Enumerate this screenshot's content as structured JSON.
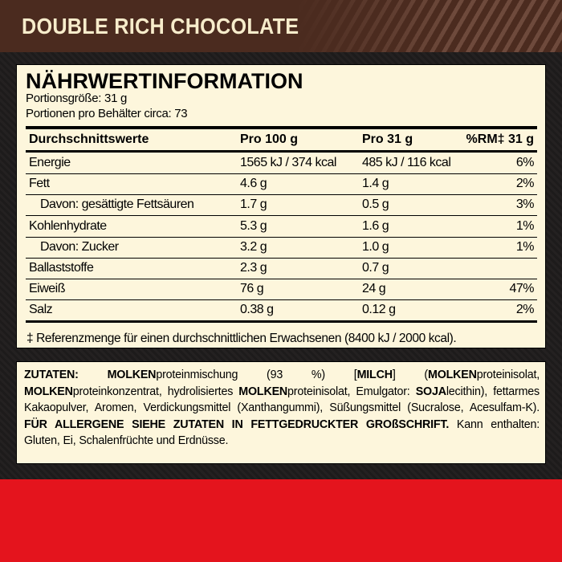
{
  "header": {
    "title": "DOUBLE RICH CHOCOLATE"
  },
  "nutrition": {
    "title": "NÄHRWERTINFORMATION",
    "serving_size": "Portionsgröße: 31 g",
    "servings_per_container": "Portionen pro Behälter circa: 73",
    "columns": [
      "Durchschnittswerte",
      "Pro 100 g",
      "Pro 31 g",
      "%RM‡ 31 g"
    ],
    "rows": [
      {
        "label": "Energie",
        "per100": "1565 kJ / 374 kcal",
        "per31": "485 kJ / 116 kcal",
        "rm": "6%",
        "indent": false
      },
      {
        "label": "Fett",
        "per100": "4.6 g",
        "per31": "1.4 g",
        "rm": "2%",
        "indent": false
      },
      {
        "label": "Davon: gesättigte Fettsäuren",
        "per100": "1.7 g",
        "per31": "0.5 g",
        "rm": "3%",
        "indent": true
      },
      {
        "label": "Kohlenhydrate",
        "per100": "5.3 g",
        "per31": "1.6 g",
        "rm": "1%",
        "indent": false
      },
      {
        "label": "Davon: Zucker",
        "per100": "3.2 g",
        "per31": "1.0 g",
        "rm": "1%",
        "indent": true
      },
      {
        "label": "Ballaststoffe",
        "per100": "2.3 g",
        "per31": "0.7 g",
        "rm": "",
        "indent": false
      },
      {
        "label": "Eiweiß",
        "per100": "76 g",
        "per31": "24 g",
        "rm": "47%",
        "indent": false
      },
      {
        "label": "Salz",
        "per100": "0.38 g",
        "per31": "0.12 g",
        "rm": "2%",
        "indent": false
      }
    ],
    "footnote": "‡ Referenzmenge für einen durchschnittlichen Erwachsenen (8400 kJ / 2000 kcal)."
  },
  "ingredients": {
    "segments": [
      {
        "t": "ZUTATEN: ",
        "b": true
      },
      {
        "t": "MOLKEN",
        "b": true
      },
      {
        "t": "proteinmischung (93 %) [",
        "b": false
      },
      {
        "t": "MILCH",
        "b": true
      },
      {
        "t": "] (",
        "b": false
      },
      {
        "t": "MOLKEN",
        "b": true
      },
      {
        "t": "proteinisolat, ",
        "b": false
      },
      {
        "t": "MOLKEN",
        "b": true
      },
      {
        "t": "proteinkonzentrat, hydrolisiertes ",
        "b": false
      },
      {
        "t": "MOLKEN",
        "b": true
      },
      {
        "t": "proteinisolat, Emulgator: ",
        "b": false
      },
      {
        "t": "SOJA",
        "b": true
      },
      {
        "t": "lecithin), fettarmes Kakaopulver, Aromen, Verdickungsmittel (Xanthangummi), Süßungsmittel (Sucralose, Acesulfam-K). ",
        "b": false
      },
      {
        "t": "FÜR ALLERGENE SIEHE ZUTATEN IN FETTGEDRUCKTER GROßSCHRIFT.",
        "b": true
      },
      {
        "t": " Kann enthalten: Gluten, Ei, Schalenfrüchte und Erdnüsse.",
        "b": false
      }
    ]
  },
  "colors": {
    "header_brown": "#4b2b1f",
    "panel_cream": "#fdf6dc",
    "accent_red": "#e4141d"
  }
}
